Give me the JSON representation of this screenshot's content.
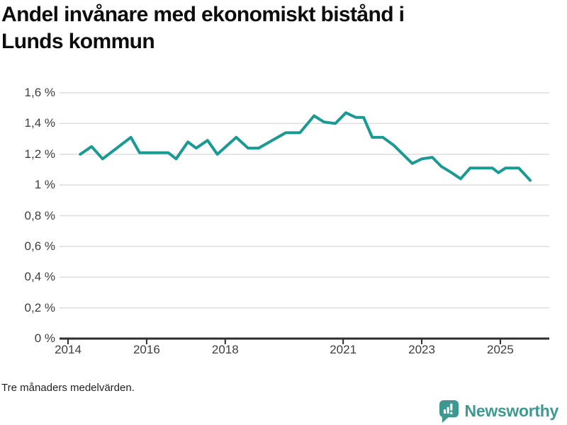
{
  "header": {
    "title_line1": "Andel invånare med ekonomiskt bistånd i",
    "title_line2": "Lunds kommun"
  },
  "footnote": "Tre månaders medelvärden.",
  "brand": {
    "name": "Newsworthy",
    "icon": "speech-bubble-with-bar-chart-and-exclamation",
    "color": "#3f9890"
  },
  "chart_data": {
    "type": "line",
    "title": "Andel invånare med ekonomiskt bistånd i Lunds kommun",
    "footnote": "Tre månaders medelvärden.",
    "ylabel": "",
    "xlabel": "",
    "ylim": [
      0,
      1.6
    ],
    "xlim": [
      2013.78,
      2026.25
    ],
    "grid": "horizontal",
    "line_color": "#1a9a93",
    "grid_color": "#dddddd",
    "axis_color": "#2e2e2e",
    "tick_text_color": "#3d3d3d",
    "y_ticks": [
      {
        "value": 0,
        "label": "0 %"
      },
      {
        "value": 0.2,
        "label": "0,2 %"
      },
      {
        "value": 0.4,
        "label": "0,4 %"
      },
      {
        "value": 0.6,
        "label": "0,6 %"
      },
      {
        "value": 0.8,
        "label": "0,8 %"
      },
      {
        "value": 1.0,
        "label": "1 %"
      },
      {
        "value": 1.2,
        "label": "1,2 %"
      },
      {
        "value": 1.4,
        "label": "1,4 %"
      },
      {
        "value": 1.6,
        "label": "1,6 %"
      }
    ],
    "x_ticks": [
      {
        "value": 2014,
        "label": "2014"
      },
      {
        "value": 2016,
        "label": "2016"
      },
      {
        "value": 2018,
        "label": "2018"
      },
      {
        "value": 2021,
        "label": "2021"
      },
      {
        "value": 2023,
        "label": "2023"
      },
      {
        "value": 2025,
        "label": "2025"
      }
    ],
    "series": [
      {
        "name": "Andel invånare med ekonomiskt bistånd, Lunds kommun",
        "unit": "%",
        "points": [
          [
            2014.31,
            1.2
          ],
          [
            2014.6,
            1.25
          ],
          [
            2014.88,
            1.17
          ],
          [
            2015.6,
            1.31
          ],
          [
            2015.82,
            1.21
          ],
          [
            2016.55,
            1.21
          ],
          [
            2016.75,
            1.17
          ],
          [
            2017.05,
            1.28
          ],
          [
            2017.26,
            1.24
          ],
          [
            2017.55,
            1.29
          ],
          [
            2017.8,
            1.2
          ],
          [
            2018.28,
            1.31
          ],
          [
            2018.58,
            1.24
          ],
          [
            2018.85,
            1.24
          ],
          [
            2019.54,
            1.34
          ],
          [
            2019.9,
            1.34
          ],
          [
            2020.26,
            1.45
          ],
          [
            2020.51,
            1.41
          ],
          [
            2020.8,
            1.4
          ],
          [
            2021.07,
            1.47
          ],
          [
            2021.32,
            1.44
          ],
          [
            2021.52,
            1.44
          ],
          [
            2021.74,
            1.31
          ],
          [
            2022.01,
            1.31
          ],
          [
            2022.28,
            1.26
          ],
          [
            2022.76,
            1.14
          ],
          [
            2023.0,
            1.17
          ],
          [
            2023.27,
            1.18
          ],
          [
            2023.5,
            1.12
          ],
          [
            2023.76,
            1.08
          ],
          [
            2023.99,
            1.04
          ],
          [
            2024.23,
            1.11
          ],
          [
            2024.8,
            1.11
          ],
          [
            2024.95,
            1.08
          ],
          [
            2025.13,
            1.11
          ],
          [
            2025.47,
            1.11
          ],
          [
            2025.76,
            1.03
          ]
        ]
      }
    ]
  }
}
